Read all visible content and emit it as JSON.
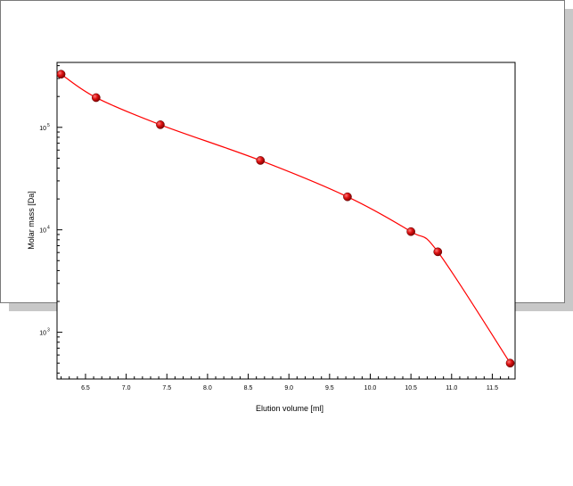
{
  "chart_data": {
    "type": "scatter",
    "xlabel": "Elution volume [ml]",
    "ylabel": "Molar mass [Da]",
    "xlim": [
      6.15,
      11.78
    ],
    "ylim": [
      350,
      430000
    ],
    "y_scale": "log",
    "x_tick_labels": [
      "6.5",
      "7.0",
      "7.5",
      "8.0",
      "8.5",
      "9.0",
      "9.5",
      "10.0",
      "10.5",
      "11.0",
      "11.5"
    ],
    "y_tick_labels": [
      {
        "base": "10",
        "exp": "5"
      },
      {
        "base": "10",
        "exp": "4"
      },
      {
        "base": "10",
        "exp": "3"
      }
    ],
    "points": [
      {
        "x": 6.2,
        "y": 330000
      },
      {
        "x": 6.63,
        "y": 195000
      },
      {
        "x": 7.42,
        "y": 106000
      },
      {
        "x": 8.65,
        "y": 47500
      },
      {
        "x": 9.72,
        "y": 21000
      },
      {
        "x": 10.5,
        "y": 9600
      },
      {
        "x": 10.83,
        "y": 6100
      },
      {
        "x": 11.72,
        "y": 500
      }
    ],
    "point_color": "#cc0000",
    "curve_color": "#ff0000",
    "grid": false
  }
}
